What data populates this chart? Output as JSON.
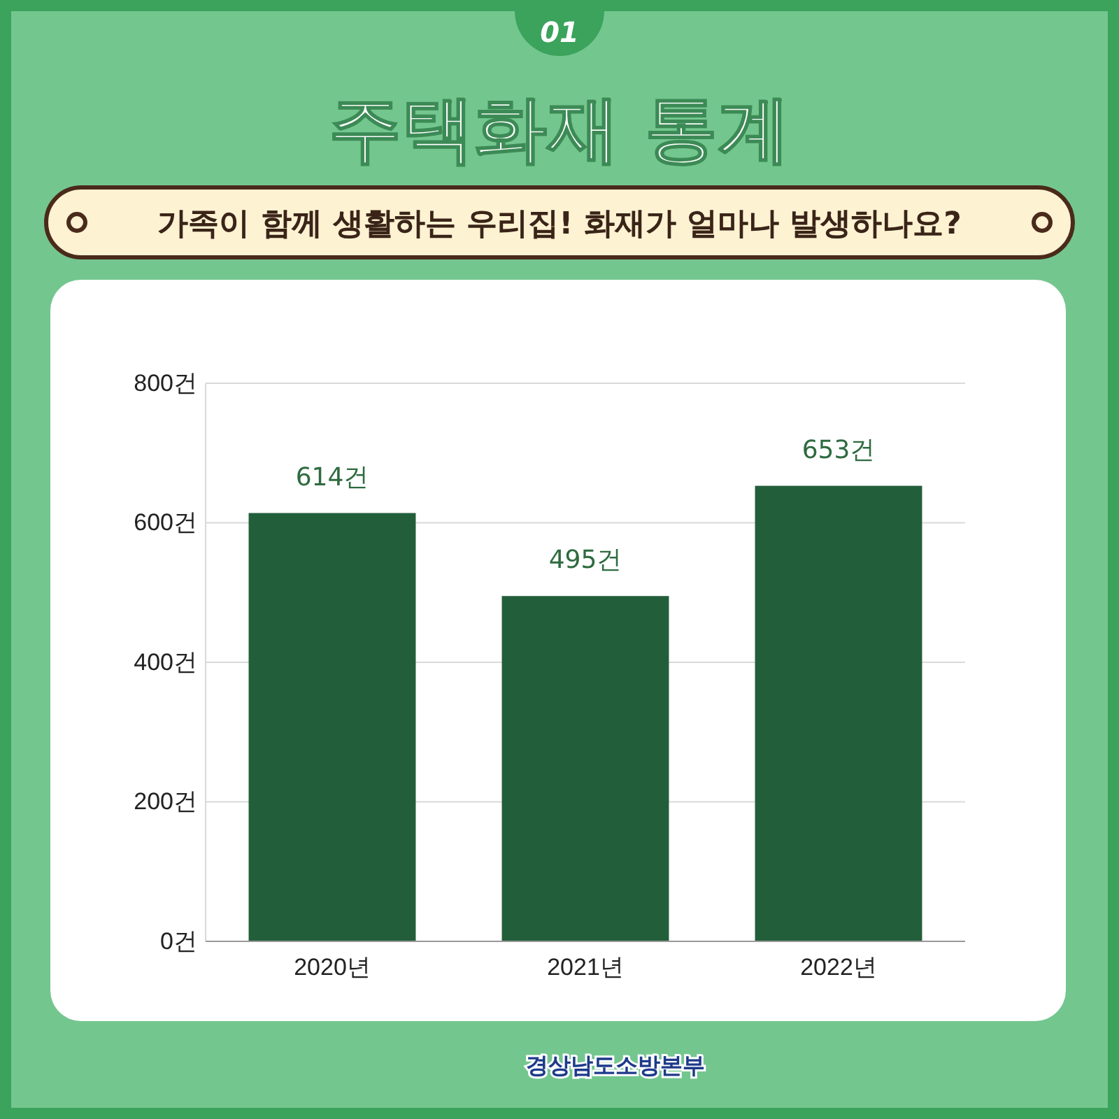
{
  "chart_data": {
    "type": "bar",
    "title": "주택화재 통계",
    "subtitle": "가족이 함께 생활하는 우리집! 화재가 얼마나 발생하나요?",
    "categories": [
      "2020년",
      "2021년",
      "2022년"
    ],
    "values": [
      614,
      495,
      653
    ],
    "color": "#235e3a",
    "value_labels": [
      "614건",
      "495건",
      "653건"
    ],
    "ylim": [
      0,
      800
    ],
    "yticks": [
      {
        "value": 0,
        "label": "0건"
      },
      {
        "value": 200,
        "label": "200건"
      },
      {
        "value": 400,
        "label": "400건"
      },
      {
        "value": 600,
        "label": "600건"
      },
      {
        "value": 800,
        "label": "800건"
      }
    ],
    "grid": "y",
    "annotations": [
      "01",
      "경상남도소방본부"
    ]
  }
}
